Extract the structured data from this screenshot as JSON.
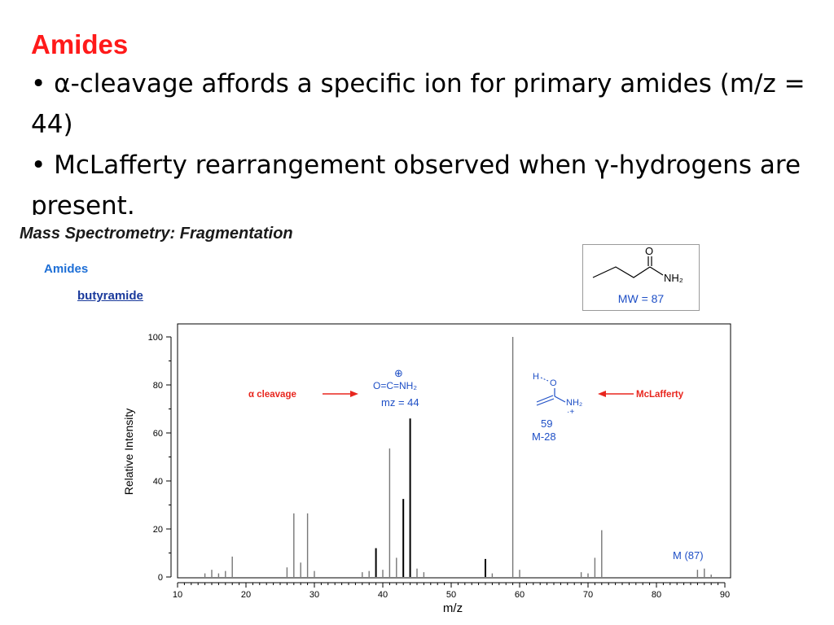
{
  "slide": {
    "title": "Amides",
    "bullets": [
      "• α-cleavage affords a specific ion for primary amides (m/z = 44)",
      "• McLafferty rearrangement observed when γ-hydrogens are present."
    ]
  },
  "figure": {
    "heading": "Mass Spectrometry: Fragmentation",
    "category": "Amides",
    "compound": "butyramide",
    "structure": {
      "carbonyl_atom": "O",
      "amine_group": "NH₂",
      "mw_label": "MW = 87"
    }
  },
  "annotations": {
    "alpha_label": "α cleavage",
    "alpha_ion": "O=C=NH₂",
    "alpha_charge": "⊕",
    "alpha_mz": "mz = 44",
    "mclafferty_label": "McLafferty",
    "mclafferty_h": "H",
    "mclafferty_o": "O",
    "mclafferty_nh2": "NH₂",
    "mclafferty_charge": "·+",
    "mclafferty_mass": "59",
    "mclafferty_loss": "M-28",
    "molecular_ion": "M (87)"
  },
  "colors": {
    "annotation_red": "#e8261e",
    "annotation_blue": "#1e4fc6",
    "title_red": "#ff1a1a"
  },
  "chart_data": {
    "type": "bar",
    "xlabel": "m/z",
    "ylabel": "Relative Intensity",
    "xlim": [
      10,
      90
    ],
    "ylim": [
      0,
      100
    ],
    "x_ticks": [
      10,
      20,
      30,
      40,
      50,
      60,
      70,
      80,
      90
    ],
    "y_ticks": [
      0,
      20,
      40,
      60,
      80,
      100
    ],
    "peaks": [
      {
        "mz": 14,
        "value": 1.5
      },
      {
        "mz": 15,
        "value": 3
      },
      {
        "mz": 16,
        "value": 1.5
      },
      {
        "mz": 17,
        "value": 2.5
      },
      {
        "mz": 18,
        "value": 8.5
      },
      {
        "mz": 26,
        "value": 4
      },
      {
        "mz": 27,
        "value": 26.5
      },
      {
        "mz": 28,
        "value": 6
      },
      {
        "mz": 29,
        "value": 26.5
      },
      {
        "mz": 30,
        "value": 2.5
      },
      {
        "mz": 37,
        "value": 2
      },
      {
        "mz": 38,
        "value": 2.5
      },
      {
        "mz": 39,
        "value": 12
      },
      {
        "mz": 40,
        "value": 3
      },
      {
        "mz": 41,
        "value": 53.5
      },
      {
        "mz": 42,
        "value": 8
      },
      {
        "mz": 43,
        "value": 32.5
      },
      {
        "mz": 44,
        "value": 66
      },
      {
        "mz": 45,
        "value": 3.5
      },
      {
        "mz": 46,
        "value": 2
      },
      {
        "mz": 55,
        "value": 7.5
      },
      {
        "mz": 56,
        "value": 1.5
      },
      {
        "mz": 59,
        "value": 100
      },
      {
        "mz": 60,
        "value": 3
      },
      {
        "mz": 69,
        "value": 2
      },
      {
        "mz": 70,
        "value": 1.5
      },
      {
        "mz": 71,
        "value": 8
      },
      {
        "mz": 72,
        "value": 19.5
      },
      {
        "mz": 86,
        "value": 3
      },
      {
        "mz": 87,
        "value": 3.5
      },
      {
        "mz": 88,
        "value": 1
      }
    ],
    "dark_peaks": [
      39,
      43,
      44,
      55
    ]
  }
}
